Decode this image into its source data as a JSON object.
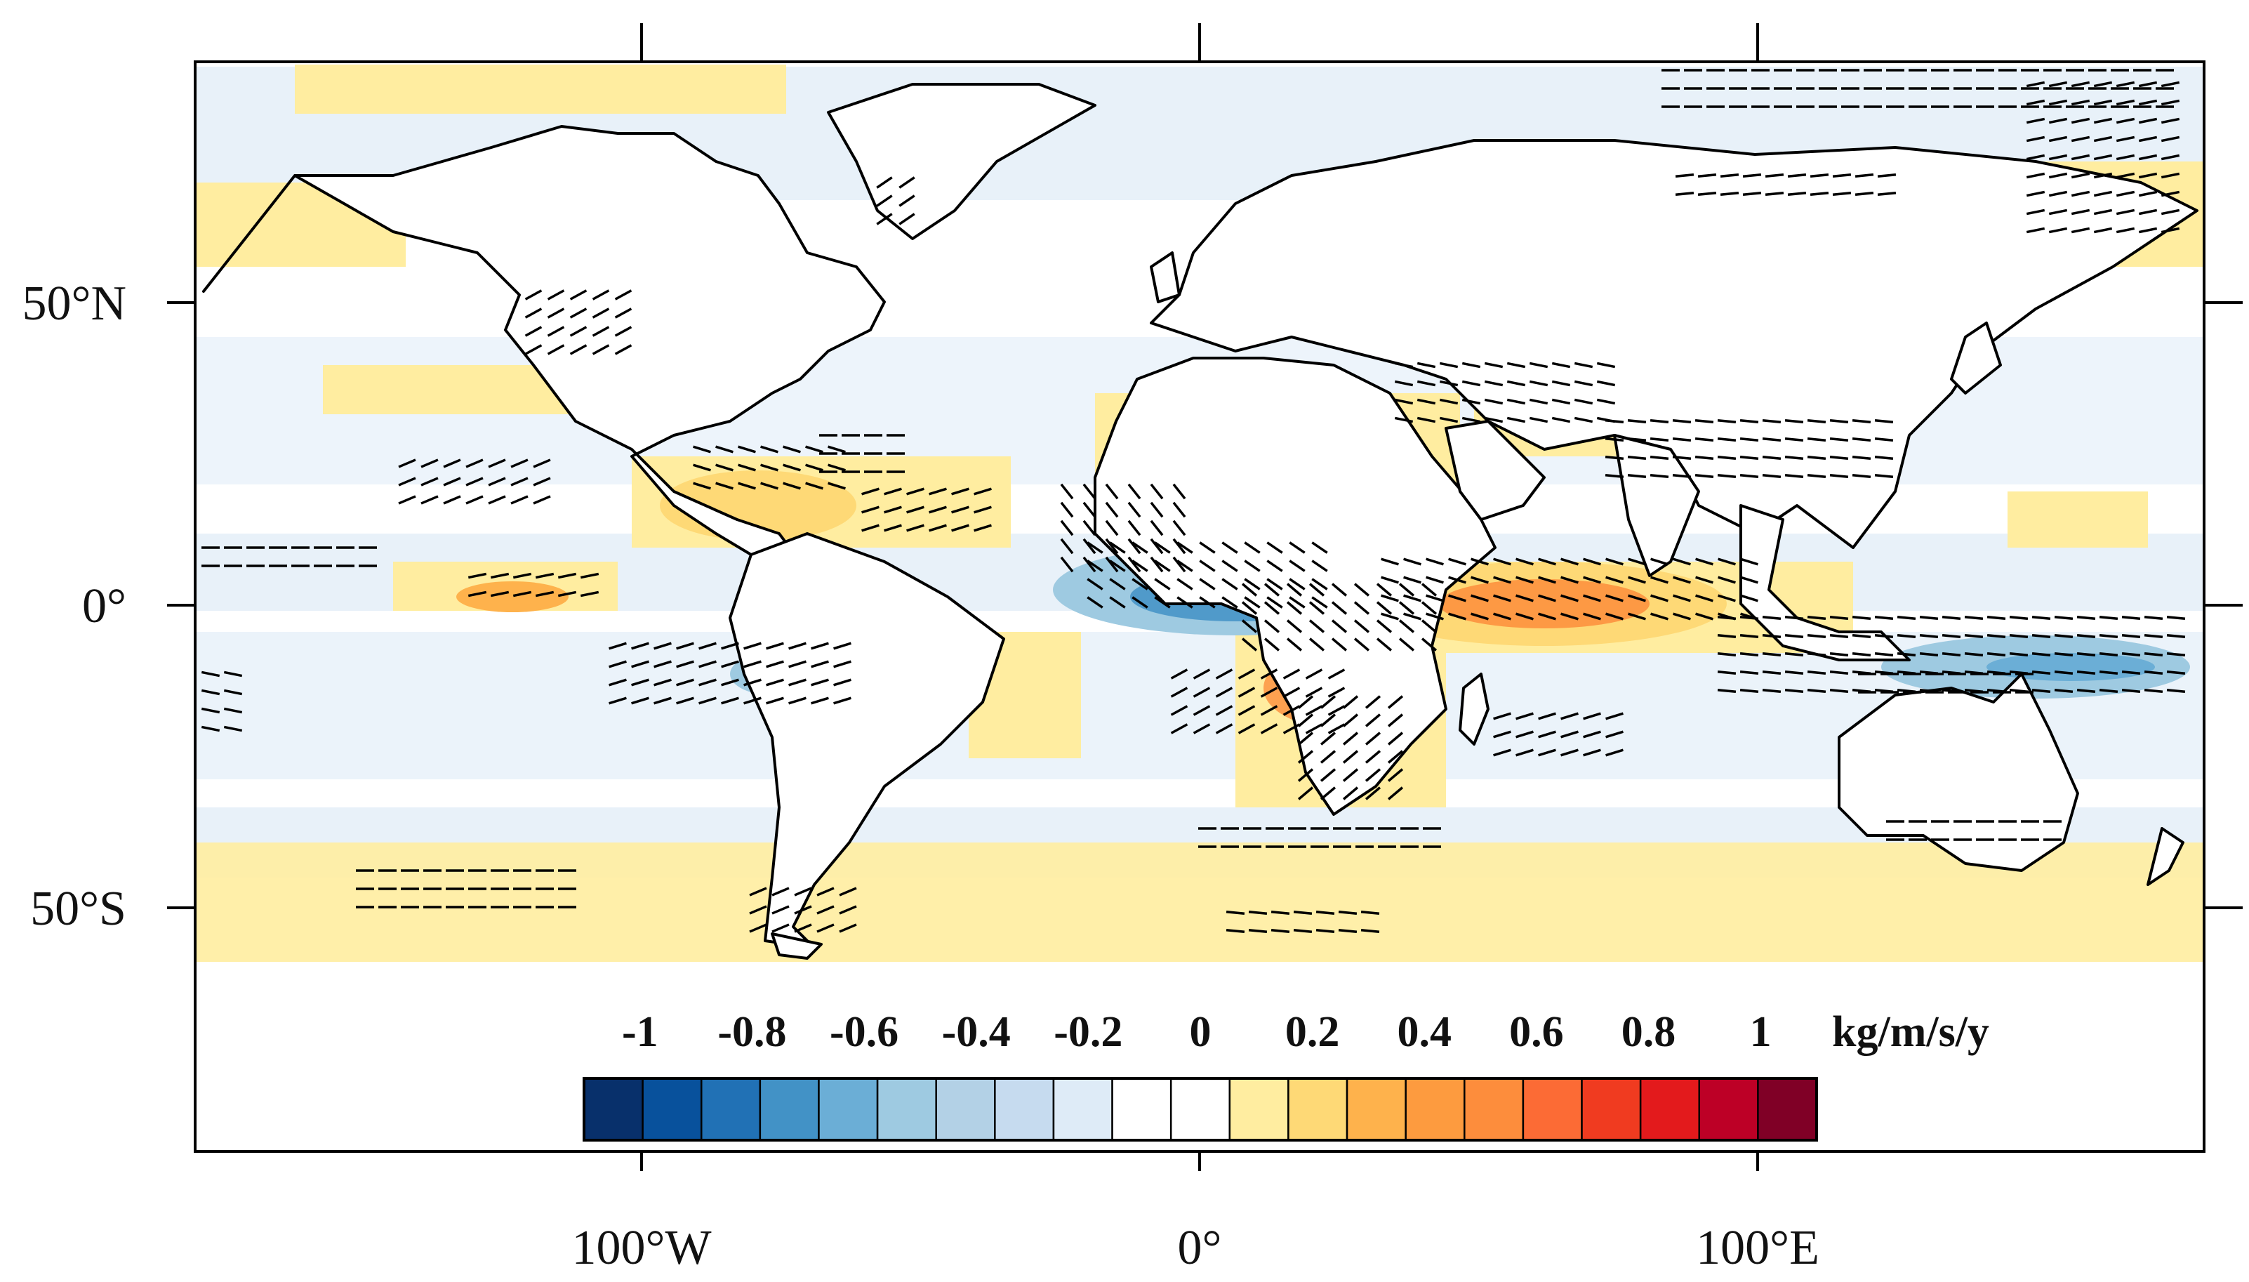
{
  "map": {
    "lon_range": [
      -180,
      180
    ],
    "lat_range": [
      -90,
      90
    ],
    "x_ticks": [
      {
        "lon": -100,
        "label": "100°W"
      },
      {
        "lon": 0,
        "label": "0°"
      },
      {
        "lon": 100,
        "label": "100°E"
      }
    ],
    "y_ticks": [
      {
        "lat": 50,
        "label": "50°N"
      },
      {
        "lat": 0,
        "label": "0°"
      },
      {
        "lat": -50,
        "label": "50°S"
      }
    ],
    "data_lat_range": [
      -58,
      90
    ],
    "land_color": "#ffffff",
    "coastline_color": "#000000",
    "arrows": "black",
    "colorbar": {
      "orientation": "horizontal",
      "labels": [
        "-1",
        "-0.8",
        "-0.6",
        "-0.4",
        "-0.2",
        "0",
        "0.2",
        "0.4",
        "0.6",
        "0.8",
        "1"
      ],
      "unit": "kg/m/s/y",
      "min": -1.1,
      "max": 1.1,
      "step": 0.1,
      "colors": [
        "#08306b",
        "#08519c",
        "#2171b5",
        "#4292c6",
        "#6baed6",
        "#9ecae1",
        "#b3d1e6",
        "#c6dbef",
        "#deebf7",
        "#ffffff",
        "#ffffff",
        "#ffeda0",
        "#fed976",
        "#feb24c",
        "#fd9b3f",
        "#fd8d3c",
        "#fc6b35",
        "#f03b20",
        "#e31a1c",
        "#bd0026",
        "#800026"
      ]
    }
  }
}
